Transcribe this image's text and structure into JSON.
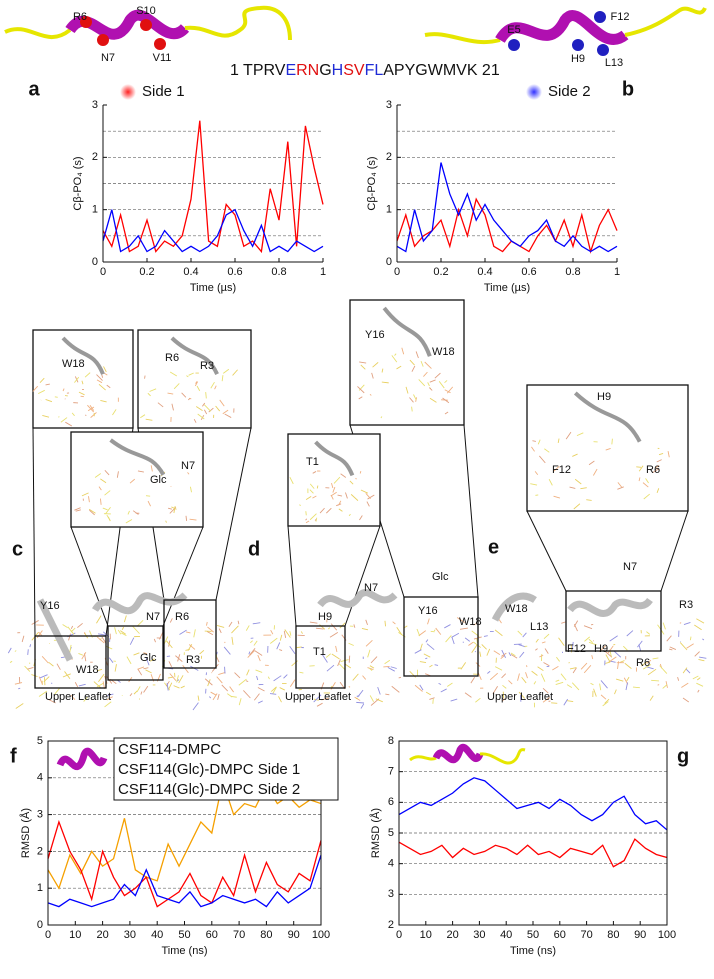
{
  "figure": {
    "panel_letters": [
      "a",
      "b",
      "c",
      "d",
      "e",
      "f",
      "g"
    ],
    "sequence": [
      {
        "text": "1 TPRV",
        "color": "#111111"
      },
      {
        "text": "E",
        "color": "#1f2bd6"
      },
      {
        "text": "RN",
        "color": "#e01010"
      },
      {
        "text": "G",
        "color": "#111111"
      },
      {
        "text": "H",
        "color": "#1f2bd6"
      },
      {
        "text": "SV",
        "color": "#e01010"
      },
      {
        "text": "FL",
        "color": "#1f2bd6"
      },
      {
        "text": "APYGWMVK 21",
        "color": "#111111"
      }
    ],
    "legend": [
      {
        "text": "Side 1",
        "color": "#e01010"
      },
      {
        "text": "Side 2",
        "color": "#3030e0"
      }
    ],
    "helix_side1": [
      "R6",
      "S10",
      "N7",
      "V11"
    ],
    "helix_side2": [
      "E5",
      "F12",
      "H9",
      "L13"
    ],
    "panel_c": [
      "W18",
      "R6",
      "R3",
      "N7",
      "Glc",
      "Y16",
      "N7",
      "R6",
      "Glc",
      "R3",
      "W18",
      "Upper Leaflet"
    ],
    "panel_d": [
      "Y16",
      "W18",
      "T1",
      "N7",
      "Glc",
      "H9",
      "T1",
      "Y16",
      "W18",
      "Upper Leaflet"
    ],
    "panel_e": [
      "H9",
      "F12",
      "R6",
      "W18",
      "N7",
      "L13",
      "R3",
      "F12",
      "H9",
      "R6",
      "Upper Leaflet"
    ]
  },
  "chart_data": [
    {
      "type": "line",
      "xlabel": "Time (µs)",
      "ylabel": "Cβ-PO₄ (s)",
      "x": [
        0,
        0.04,
        0.08,
        0.12,
        0.16,
        0.2,
        0.24,
        0.28,
        0.32,
        0.36,
        0.4,
        0.44,
        0.48,
        0.52,
        0.56,
        0.6,
        0.64,
        0.68,
        0.72,
        0.76,
        0.8,
        0.84,
        0.88,
        0.92,
        0.96,
        1
      ],
      "series": [
        {
          "color": "#ff0000",
          "values": [
            0.6,
            0.3,
            0.9,
            0.2,
            0.3,
            0.8,
            0.2,
            0.4,
            0.3,
            0.5,
            1.2,
            2.7,
            0.4,
            0.3,
            1.1,
            0.9,
            0.3,
            0.4,
            0.2,
            1.4,
            0.8,
            2.3,
            0.3,
            2.6,
            1.8,
            1.1
          ]
        },
        {
          "color": "#0000ff",
          "values": [
            0.4,
            1.0,
            0.2,
            0.3,
            0.5,
            0.2,
            0.3,
            0.6,
            0.4,
            0.2,
            0.3,
            0.2,
            0.3,
            0.5,
            0.9,
            1.0,
            0.6,
            0.3,
            0.7,
            0.2,
            0.3,
            0.2,
            0.4,
            0.3,
            0.2,
            0.3
          ]
        }
      ],
      "xlim": [
        0,
        1
      ],
      "xticks": [
        0,
        0.2,
        0.4,
        0.6,
        0.8,
        1
      ],
      "ylim": [
        0,
        3
      ],
      "yticks": [
        0,
        1,
        2,
        3
      ],
      "grid_lines": [
        0.5,
        1,
        1.5,
        2,
        2.5
      ]
    },
    {
      "type": "line",
      "xlabel": "Time (µs)",
      "ylabel": "Cβ-PO₄ (s)",
      "x": [
        0,
        0.04,
        0.08,
        0.12,
        0.16,
        0.2,
        0.24,
        0.28,
        0.32,
        0.36,
        0.4,
        0.44,
        0.48,
        0.52,
        0.56,
        0.6,
        0.64,
        0.68,
        0.72,
        0.76,
        0.8,
        0.84,
        0.88,
        0.92,
        0.96,
        1
      ],
      "series": [
        {
          "color": "#ff0000",
          "values": [
            0.4,
            0.9,
            0.3,
            0.5,
            0.6,
            0.8,
            0.3,
            1.0,
            0.5,
            1.2,
            0.9,
            0.3,
            0.2,
            0.4,
            0.3,
            0.2,
            0.5,
            0.7,
            0.4,
            0.8,
            0.3,
            0.9,
            0.2,
            0.7,
            1.0,
            0.6
          ]
        },
        {
          "color": "#0000ff",
          "values": [
            0.3,
            0.2,
            1.0,
            0.4,
            0.6,
            1.9,
            1.3,
            0.9,
            1.3,
            0.8,
            1.1,
            0.8,
            0.6,
            0.4,
            0.3,
            0.5,
            0.6,
            0.8,
            0.4,
            0.3,
            0.5,
            0.3,
            0.2,
            0.3,
            0.2,
            0.3
          ]
        }
      ],
      "xlim": [
        0,
        1
      ],
      "xticks": [
        0,
        0.2,
        0.4,
        0.6,
        0.8,
        1
      ],
      "ylim": [
        0,
        3
      ],
      "yticks": [
        0,
        1,
        2,
        3
      ],
      "grid_lines": [
        0.5,
        1,
        1.5,
        2,
        2.5
      ]
    },
    {
      "type": "line",
      "xlabel": "Time (ns)",
      "ylabel": "RMSD (Å)",
      "x": [
        0,
        4,
        8,
        12,
        16,
        20,
        24,
        28,
        32,
        36,
        40,
        44,
        48,
        52,
        56,
        60,
        64,
        68,
        72,
        76,
        80,
        84,
        88,
        92,
        96,
        100
      ],
      "series": [
        {
          "name": "CSF114-DMPC",
          "color": "#f5a000",
          "values": [
            1.5,
            1.0,
            1.9,
            1.4,
            2.0,
            1.6,
            1.8,
            2.9,
            1.5,
            1.3,
            1.2,
            2.2,
            1.6,
            2.2,
            2.8,
            2.5,
            3.9,
            3.0,
            3.3,
            3.2,
            3.8,
            3.3,
            3.5,
            3.2,
            3.4,
            3.3
          ]
        },
        {
          "name": "CSF114(Glc)-DMPC Side 1",
          "color": "#ff0000",
          "values": [
            1.8,
            2.8,
            2.0,
            1.5,
            0.7,
            2.0,
            1.3,
            0.8,
            1.0,
            1.3,
            0.5,
            0.7,
            0.9,
            1.4,
            0.8,
            0.6,
            1.3,
            0.8,
            1.9,
            0.9,
            1.7,
            1.1,
            0.9,
            1.4,
            1.2,
            2.3
          ]
        },
        {
          "name": "CSF114(Glc)-DMPC Side 2",
          "color": "#0000ff",
          "values": [
            0.6,
            0.5,
            0.7,
            0.6,
            0.5,
            0.6,
            0.7,
            1.1,
            0.8,
            1.5,
            0.8,
            0.7,
            0.6,
            0.9,
            0.5,
            0.6,
            0.8,
            0.7,
            0.6,
            0.7,
            0.5,
            0.9,
            0.6,
            0.8,
            1.0,
            1.9
          ]
        }
      ],
      "legend_colors": [
        "#f06000",
        "#ff0000",
        "#0000ff"
      ],
      "xlim": [
        0,
        100
      ],
      "xticks": [
        0,
        10,
        20,
        30,
        40,
        50,
        60,
        70,
        80,
        90,
        100
      ],
      "ylim": [
        0,
        5
      ],
      "yticks": [
        0,
        1,
        2,
        3,
        4,
        5
      ],
      "grid_lines": [
        1,
        2,
        3,
        4
      ]
    },
    {
      "type": "line",
      "xlabel": "Time (ns)",
      "ylabel": "RMSD (Å)",
      "x": [
        0,
        4,
        8,
        12,
        16,
        20,
        24,
        28,
        32,
        36,
        40,
        44,
        48,
        52,
        56,
        60,
        64,
        68,
        72,
        76,
        80,
        84,
        88,
        92,
        96,
        100
      ],
      "series": [
        {
          "color": "#0000ff",
          "values": [
            5.6,
            5.8,
            6.0,
            5.9,
            6.1,
            6.3,
            6.6,
            6.8,
            6.7,
            6.4,
            6.1,
            5.8,
            5.9,
            6.0,
            5.8,
            6.1,
            5.9,
            5.6,
            5.4,
            5.6,
            6.0,
            6.2,
            5.6,
            5.3,
            5.4,
            5.1
          ]
        },
        {
          "color": "#ff0000",
          "values": [
            4.7,
            4.5,
            4.3,
            4.4,
            4.6,
            4.2,
            4.5,
            4.3,
            4.4,
            4.6,
            4.5,
            4.3,
            4.6,
            4.3,
            4.4,
            4.2,
            4.5,
            4.4,
            4.3,
            4.6,
            3.9,
            4.1,
            4.8,
            4.5,
            4.3,
            4.2
          ]
        }
      ],
      "xlim": [
        0,
        100
      ],
      "xticks": [
        0,
        10,
        20,
        30,
        40,
        50,
        60,
        70,
        80,
        90,
        100
      ],
      "ylim": [
        2,
        8
      ],
      "yticks": [
        2,
        3,
        4,
        5,
        6,
        7,
        8
      ],
      "grid_lines": [
        3,
        4,
        5,
        6,
        7
      ]
    }
  ]
}
